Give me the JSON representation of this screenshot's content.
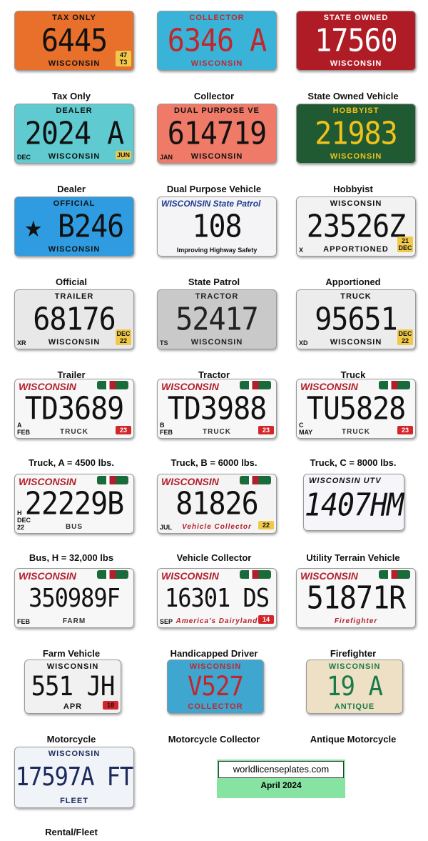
{
  "plates": [
    {
      "caption": "Tax Only",
      "top": "TAX ONLY",
      "number": "6445",
      "bottom": "WISCONSIN",
      "side": "47 T3",
      "bg": "#e8702a",
      "fg": "#111",
      "style": "classic"
    },
    {
      "caption": "Collector",
      "top": "COLLECTOR",
      "number": "6346 A",
      "bottom": "WISCONSIN",
      "bg": "#39b4d8",
      "fg": "#c0272d",
      "style": "classic"
    },
    {
      "caption": "State Owned Vehicle",
      "top": "STATE OWNED",
      "number": "17560",
      "bottom": "WISCONSIN",
      "bg": "#b01c25",
      "fg": "#fff",
      "style": "classic"
    },
    {
      "caption": "Dealer",
      "top": "DEALER",
      "number": "2024 A",
      "bottom": "WISCONSIN",
      "left_tag": "DEC",
      "side": "JUN",
      "bg": "#5fcbd1",
      "fg": "#111",
      "style": "classic"
    },
    {
      "caption": "Dual Purpose Vehicle",
      "top": "DUAL PURPOSE VE",
      "number": "614719",
      "bottom": "WISCONSIN",
      "left_tag": "JAN",
      "bg": "#ee7a67",
      "fg": "#111",
      "style": "classic"
    },
    {
      "caption": "Hobbyist",
      "top": "HOBBYIST",
      "number": "21983",
      "bottom": "WISCONSIN",
      "bg": "#1f5a32",
      "fg": "#f2c21a",
      "style": "classic"
    },
    {
      "caption": "Official",
      "top": "OFFICIAL",
      "number": "★ B246",
      "bottom": "WISCONSIN",
      "bg": "#2f9be0",
      "fg": "#111",
      "style": "classic"
    },
    {
      "caption": "State Patrol",
      "top": "WISCONSIN   State Patrol",
      "number": "108",
      "bottom": "Improving Highway Safety",
      "bg": "#f4f4f6",
      "fg": "#111",
      "style": "patrol"
    },
    {
      "caption": "Apportioned",
      "top": "WISCONSIN",
      "number": "23526Z",
      "bottom": "APPORTIONED",
      "left_tag": "X",
      "side": "21 DEC",
      "bg": "#f2f2f2",
      "fg": "#111",
      "style": "classic"
    },
    {
      "caption": "Trailer",
      "top": "TRAILER",
      "number": "68176",
      "bottom": "WISCONSIN",
      "left_tag": "XR",
      "side": "DEC 22",
      "bg": "#e8e8e8",
      "fg": "#111",
      "style": "classic"
    },
    {
      "caption": "Tractor",
      "top": "TRACTOR",
      "number": "52417",
      "bottom": "WISCONSIN",
      "left_tag": "TS",
      "bg": "#c9c9c9",
      "fg": "#222",
      "style": "classic"
    },
    {
      "caption": "Truck",
      "top": "TRUCK",
      "number": "95651",
      "bottom": "WISCONSIN",
      "left_tag": "XD",
      "side": "DEC 22",
      "bg": "#ececec",
      "fg": "#111",
      "style": "classic"
    },
    {
      "caption": "Truck, A = 4500 lbs.",
      "top": "WISCONSIN",
      "number": "TD3689",
      "bottom": "TRUCK",
      "left_tag": "A FEB",
      "side": "23",
      "bg": "#f7f7f7",
      "fg": "#111",
      "style": "modern"
    },
    {
      "caption": "Truck, B = 6000 lbs.",
      "top": "WISCONSIN",
      "number": "TD3988",
      "bottom": "TRUCK",
      "left_tag": "B FEB",
      "side": "23",
      "bg": "#f7f7f7",
      "fg": "#111",
      "style": "modern"
    },
    {
      "caption": "Truck, C = 8000 lbs.",
      "top": "WISCONSIN",
      "number": "TU5828",
      "bottom": "TRUCK",
      "left_tag": "C MAY",
      "side": "23",
      "bg": "#f7f7f7",
      "fg": "#111",
      "style": "modern"
    },
    {
      "caption": "Bus, H = 32,000 lbs",
      "top": "WISCONSIN",
      "number": "22229B",
      "bottom": "BUS",
      "left_tag": "H DEC 22",
      "bg": "#f7f7f7",
      "fg": "#111",
      "style": "modern"
    },
    {
      "caption": "Vehicle Collector",
      "top": "WISCONSIN",
      "number": "81826",
      "bottom": "Vehicle Collector",
      "left_tag": "JUL",
      "side": "22",
      "bg": "#f4f4f4",
      "fg": "#111",
      "style": "modern"
    },
    {
      "caption": "Utility Terrain Vehicle",
      "top": "WISCONSIN UTV",
      "number": "1407HM",
      "bottom": "",
      "bg": "#f5f5fa",
      "fg": "#111",
      "style": "utv"
    },
    {
      "caption": "Farm Vehicle",
      "top": "WISCONSIN",
      "number": "350989F",
      "bottom": "FARM",
      "left_tag": "FEB",
      "bg": "#f7f7f7",
      "fg": "#111",
      "style": "modern"
    },
    {
      "caption": "Handicapped Driver",
      "top": "WISCONSIN",
      "number": "16301 DS",
      "bottom": "America's Dairyland",
      "left_tag": "SEP",
      "side": "14",
      "bg": "#f7f7f7",
      "fg": "#111",
      "style": "modern"
    },
    {
      "caption": "Firefighter",
      "top": "WISCONSIN",
      "number": "51871R",
      "bottom": "Firefighter",
      "bg": "#f7f7f7",
      "fg": "#111",
      "style": "modern"
    },
    {
      "caption": "Motorcycle",
      "top": "WISCONSIN",
      "number": "551 JH",
      "bottom": "APR",
      "side": "18",
      "bg": "#f1f1f1",
      "fg": "#111",
      "style": "moto"
    },
    {
      "caption": "Motorcycle Collector",
      "top": "WISCONSIN",
      "number": "V527",
      "bottom": "COLLECTOR",
      "bg": "#3ea6cf",
      "fg": "#c0272d",
      "style": "moto"
    },
    {
      "caption": "Antique Motorcycle",
      "top": "WISCONSIN",
      "number": "19 A",
      "bottom": "ANTIQUE",
      "bg": "#ede0c4",
      "fg": "#1a7a4a",
      "style": "moto"
    },
    {
      "caption": "Rental/Fleet",
      "top": "WISCONSIN",
      "number": "17597A FT",
      "bottom": "FLEET",
      "bg": "#f0f3f8",
      "fg": "#1b2a5a",
      "style": "fleet"
    }
  ],
  "footer": {
    "site": "worldlicenseplates.com",
    "date": "April 2024"
  }
}
